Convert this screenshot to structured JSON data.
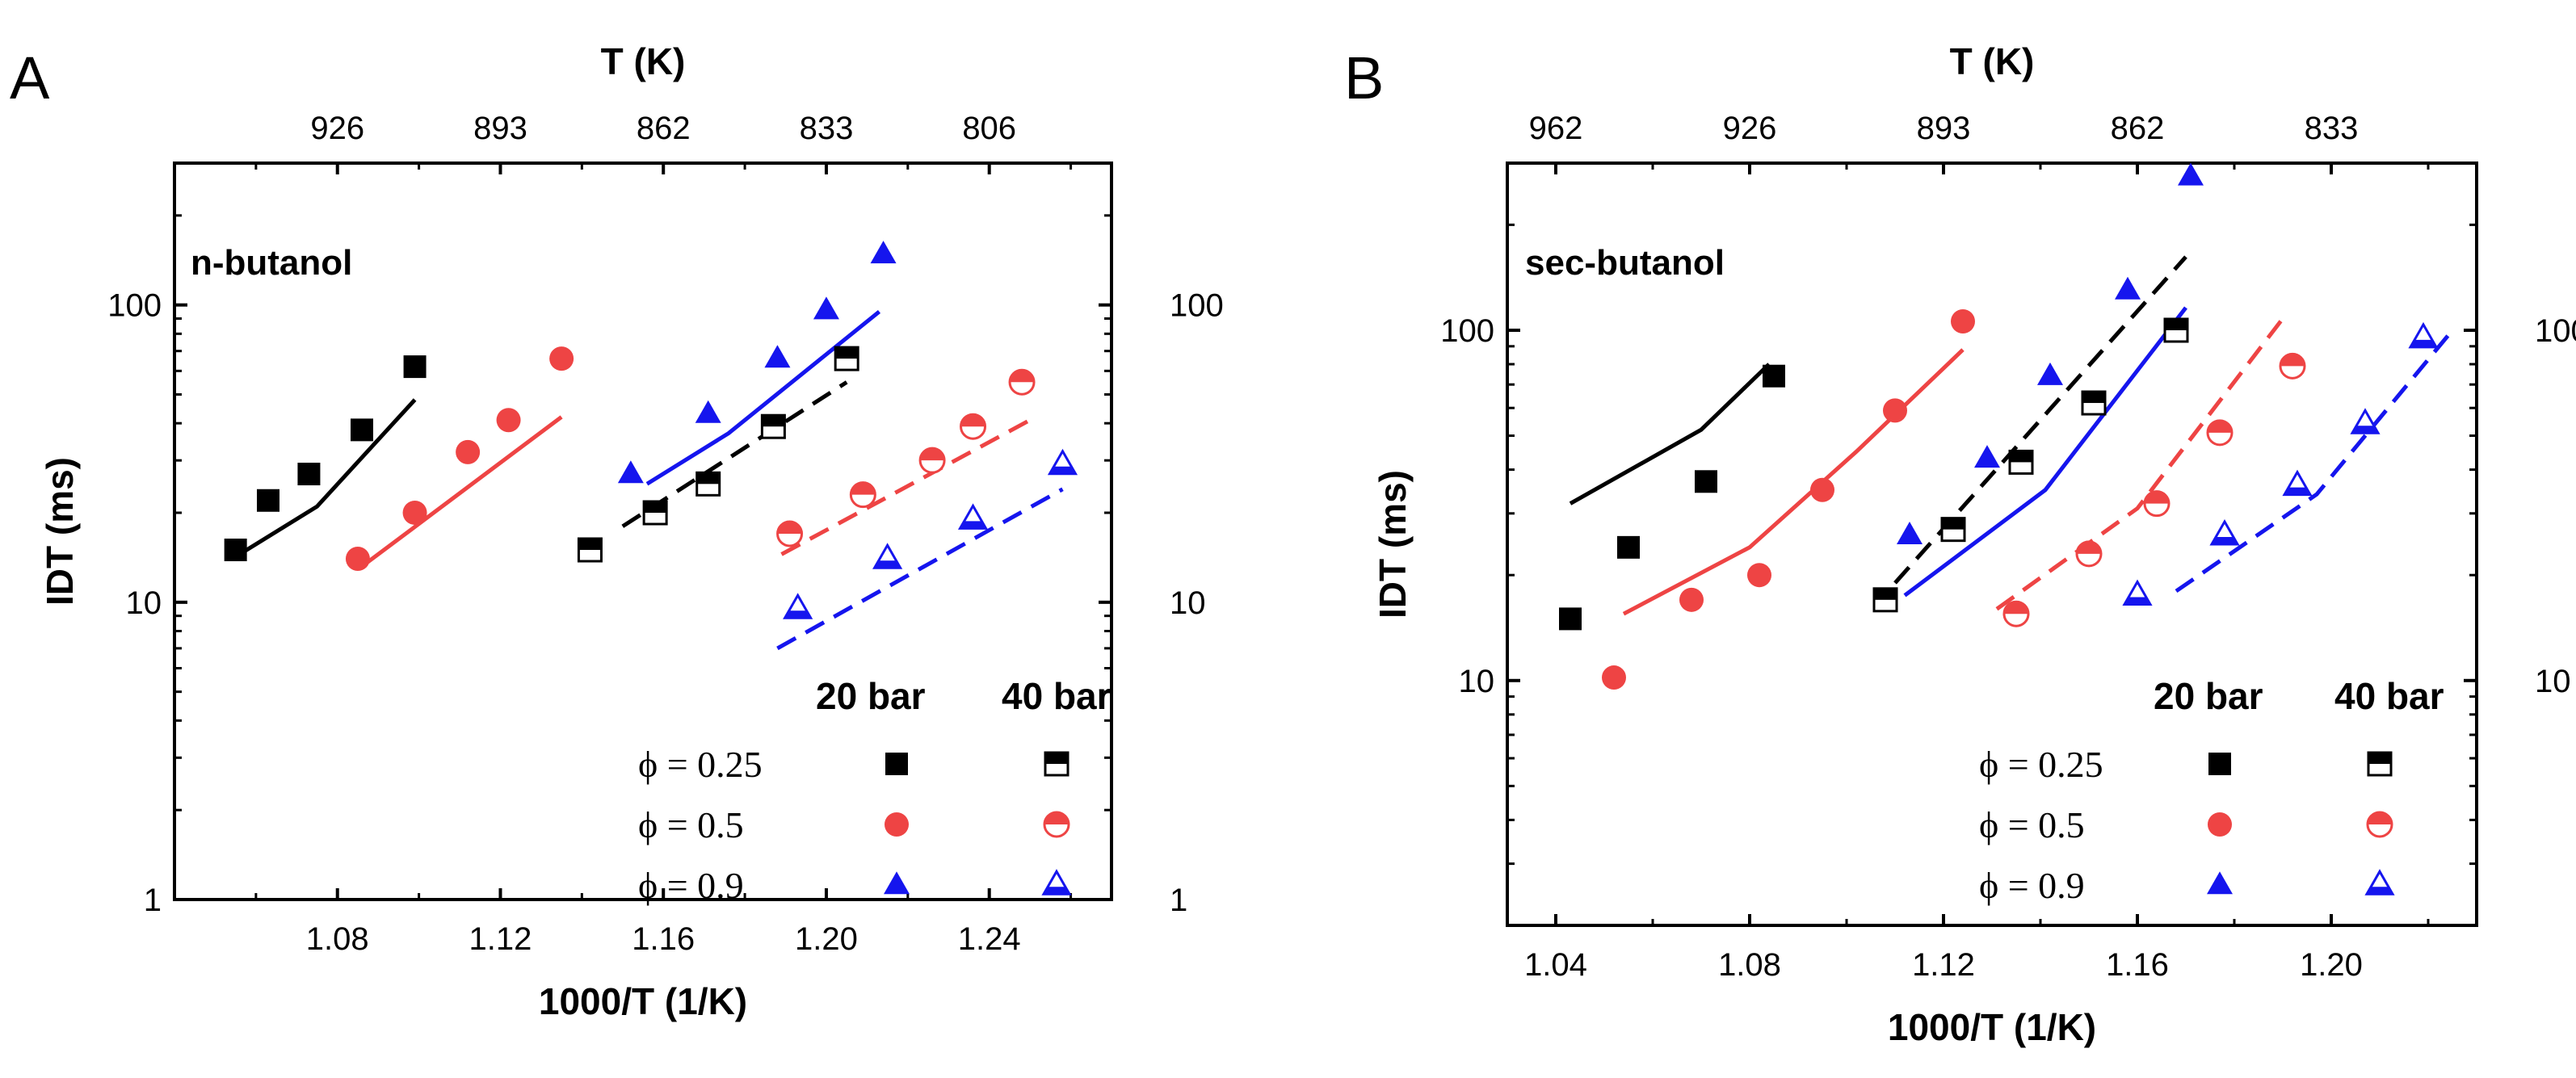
{
  "colors": {
    "black": "#000000",
    "red": "#ee4444",
    "blue": "#1515ee"
  },
  "chart_data": [
    {
      "panel_label": "A",
      "type": "scatter",
      "title": "n-butanol",
      "xlabel": "1000/T (1/K)",
      "ylabel": "IDT (ms)",
      "top_axis_label": "T (K)",
      "xlim": [
        1.04,
        1.27
      ],
      "ylim": [
        1,
        300
      ],
      "yscale": "log",
      "x_ticks": [
        "1.08",
        "1.12",
        "1.16",
        "1.20",
        "1.24"
      ],
      "x_tick_values": [
        1.08,
        1.12,
        1.16,
        1.2,
        1.24
      ],
      "y_ticks": [
        "1",
        "10",
        "100"
      ],
      "y_tick_values": [
        1,
        10,
        100
      ],
      "top_ticks": [
        "926",
        "893",
        "862",
        "833",
        "806"
      ],
      "top_tick_values": [
        1.08,
        1.12,
        1.16,
        1.2,
        1.24
      ],
      "legend": {
        "header_left": "20 bar",
        "header_right": "40 bar",
        "rows": [
          {
            "label": "ϕ = 0.25",
            "marker": "square",
            "color": "#000000"
          },
          {
            "label": "ϕ = 0.5",
            "marker": "circle",
            "color": "#ee4444"
          },
          {
            "label": "ϕ = 0.9",
            "marker": "triangle",
            "color": "#1515ee"
          }
        ]
      },
      "series": [
        {
          "name": "ϕ = 0.25, 20 bar",
          "marker": "square",
          "fill": "full",
          "color": "#000000",
          "x": [
            1.055,
            1.063,
            1.073,
            1.086,
            1.099
          ],
          "y": [
            15,
            22,
            27,
            38,
            62
          ]
        },
        {
          "name": "ϕ = 0.5, 20 bar",
          "marker": "circle",
          "fill": "full",
          "color": "#ee4444",
          "x": [
            1.085,
            1.099,
            1.112,
            1.122,
            1.135
          ],
          "y": [
            14,
            20,
            32,
            41,
            66
          ]
        },
        {
          "name": "ϕ = 0.9, 20 bar",
          "marker": "triangle",
          "fill": "full",
          "color": "#1515ee",
          "x": [
            1.152,
            1.171,
            1.188,
            1.2,
            1.214
          ],
          "y": [
            27,
            43,
            66,
            96,
            148
          ]
        },
        {
          "name": "ϕ = 0.25, 40 bar",
          "marker": "square",
          "fill": "half",
          "color": "#000000",
          "x": [
            1.142,
            1.158,
            1.171,
            1.187,
            1.205
          ],
          "y": [
            15,
            20,
            25,
            39,
            66
          ]
        },
        {
          "name": "ϕ = 0.5, 40 bar",
          "marker": "circle",
          "fill": "half",
          "color": "#ee4444",
          "x": [
            1.191,
            1.209,
            1.226,
            1.236,
            1.248
          ],
          "y": [
            17,
            23,
            30,
            39,
            55
          ]
        },
        {
          "name": "ϕ = 0.9, 40 bar",
          "marker": "triangle",
          "fill": "half",
          "color": "#1515ee",
          "x": [
            1.193,
            1.215,
            1.236,
            1.258
          ],
          "y": [
            9.5,
            14,
            19,
            29
          ]
        }
      ],
      "model_lines": [
        {
          "name": "ϕ = 0.25, 20 bar model",
          "dash": false,
          "color": "#000000",
          "x": [
            1.056,
            1.075,
            1.099
          ],
          "y": [
            14.5,
            21,
            48
          ]
        },
        {
          "name": "ϕ = 0.5, 20 bar model",
          "dash": false,
          "color": "#ee4444",
          "x": [
            1.087,
            1.135
          ],
          "y": [
            13.5,
            42
          ]
        },
        {
          "name": "ϕ = 0.9, 20 bar model",
          "dash": false,
          "color": "#1515ee",
          "x": [
            1.156,
            1.176,
            1.213
          ],
          "y": [
            25,
            37,
            95
          ]
        },
        {
          "name": "ϕ = 0.25, 40 bar model",
          "dash": true,
          "color": "#000000",
          "x": [
            1.15,
            1.205
          ],
          "y": [
            18,
            55
          ]
        },
        {
          "name": "ϕ = 0.5, 40 bar model",
          "dash": true,
          "color": "#ee4444",
          "x": [
            1.189,
            1.25
          ],
          "y": [
            14.5,
            41
          ]
        },
        {
          "name": "ϕ = 0.9, 40 bar model",
          "dash": true,
          "color": "#1515ee",
          "x": [
            1.188,
            1.258
          ],
          "y": [
            7,
            24
          ]
        }
      ]
    },
    {
      "panel_label": "B",
      "type": "scatter",
      "title": "sec-butanol",
      "xlabel": "1000/T (1/K)",
      "ylabel": "IDT (ms)",
      "top_axis_label": "T (K)",
      "xlim": [
        1.03,
        1.23
      ],
      "ylim": [
        2,
        300
      ],
      "yscale": "log",
      "x_ticks": [
        "1.04",
        "1.08",
        "1.12",
        "1.16",
        "1.20"
      ],
      "x_tick_values": [
        1.04,
        1.08,
        1.12,
        1.16,
        1.2
      ],
      "y_ticks": [
        "10",
        "100"
      ],
      "y_tick_values": [
        10,
        100
      ],
      "top_ticks": [
        "962",
        "926",
        "893",
        "862",
        "833"
      ],
      "top_tick_values": [
        1.04,
        1.08,
        1.12,
        1.16,
        1.2
      ],
      "legend": {
        "header_left": "20 bar",
        "header_right": "40 bar",
        "rows": [
          {
            "label": "ϕ = 0.25",
            "marker": "square",
            "color": "#000000"
          },
          {
            "label": "ϕ = 0.5",
            "marker": "circle",
            "color": "#ee4444"
          },
          {
            "label": "ϕ = 0.9",
            "marker": "triangle",
            "color": "#1515ee"
          }
        ]
      },
      "series": [
        {
          "name": "ϕ = 0.25, 20 bar",
          "marker": "square",
          "fill": "full",
          "color": "#000000",
          "x": [
            1.043,
            1.055,
            1.071,
            1.085
          ],
          "y": [
            15,
            24,
            37,
            74
          ]
        },
        {
          "name": "ϕ = 0.5, 20 bar",
          "marker": "circle",
          "fill": "full",
          "color": "#ee4444",
          "x": [
            1.052,
            1.068,
            1.082,
            1.095,
            1.11,
            1.124
          ],
          "y": [
            10.2,
            17,
            20,
            35,
            59,
            106
          ]
        },
        {
          "name": "ϕ = 0.9, 20 bar",
          "marker": "triangle",
          "fill": "full",
          "color": "#1515ee",
          "x": [
            1.113,
            1.129,
            1.142,
            1.158,
            1.171
          ],
          "y": [
            26,
            43,
            74,
            130,
            275
          ]
        },
        {
          "name": "ϕ = 0.25, 40 bar",
          "marker": "square",
          "fill": "half",
          "color": "#000000",
          "x": [
            1.108,
            1.122,
            1.136,
            1.151,
            1.168
          ],
          "y": [
            17,
            27,
            42,
            62,
            100
          ]
        },
        {
          "name": "ϕ = 0.5, 40 bar",
          "marker": "circle",
          "fill": "half",
          "color": "#ee4444",
          "x": [
            1.135,
            1.15,
            1.164,
            1.177,
            1.192
          ],
          "y": [
            15.5,
            23,
            32,
            51,
            79
          ]
        },
        {
          "name": "ϕ = 0.9, 40 bar",
          "marker": "triangle",
          "fill": "half",
          "color": "#1515ee",
          "x": [
            1.16,
            1.178,
            1.193,
            1.207,
            1.219
          ],
          "y": [
            17.5,
            26,
            36,
            54,
            95
          ]
        }
      ],
      "model_lines": [
        {
          "name": "ϕ = 0.25, 20 bar model",
          "dash": false,
          "color": "#000000",
          "x": [
            1.043,
            1.07,
            1.084
          ],
          "y": [
            32,
            52,
            80
          ]
        },
        {
          "name": "ϕ = 0.5, 20 bar model",
          "dash": false,
          "color": "#ee4444",
          "x": [
            1.054,
            1.08,
            1.102,
            1.124
          ],
          "y": [
            15.5,
            24,
            45,
            88
          ]
        },
        {
          "name": "ϕ = 0.9, 20 bar model",
          "dash": false,
          "color": "#1515ee",
          "x": [
            1.112,
            1.141,
            1.17
          ],
          "y": [
            17.5,
            35,
            116
          ]
        },
        {
          "name": "ϕ = 0.25, 40 bar model",
          "dash": true,
          "color": "#000000",
          "x": [
            1.11,
            1.17
          ],
          "y": [
            19,
            162
          ]
        },
        {
          "name": "ϕ = 0.5, 40 bar model",
          "dash": true,
          "color": "#ee4444",
          "x": [
            1.131,
            1.16,
            1.19
          ],
          "y": [
            16,
            31,
            108
          ]
        },
        {
          "name": "ϕ = 0.9, 40 bar model",
          "dash": true,
          "color": "#1515ee",
          "x": [
            1.168,
            1.197,
            1.225
          ],
          "y": [
            18,
            34,
            100
          ]
        }
      ]
    }
  ]
}
